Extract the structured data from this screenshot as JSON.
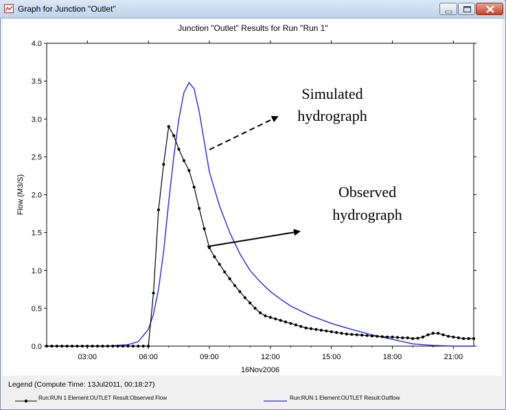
{
  "window": {
    "title": "Graph for Junction \"Outlet\"",
    "controls": [
      "minimize",
      "maximize",
      "close"
    ]
  },
  "chart_data": {
    "type": "line",
    "title": "Junction \"Outlet\" Results for Run \"Run 1\"",
    "ylabel": "Flow (M3/S)",
    "xlabel": "16Nov2006",
    "x_unit": "hours",
    "xlim": [
      1.0,
      22.0
    ],
    "ylim": [
      0.0,
      4.0
    ],
    "x_ticks": [
      3,
      6,
      9,
      12,
      15,
      18,
      21
    ],
    "x_tick_labels": [
      "03:00",
      "06:00",
      "09:00",
      "12:00",
      "15:00",
      "18:00",
      "21:00"
    ],
    "y_ticks": [
      0.0,
      0.5,
      1.0,
      1.5,
      2.0,
      2.5,
      3.0,
      3.5,
      4.0
    ],
    "y_tick_labels": [
      "0.0",
      "0.5",
      "1.0",
      "1.5",
      "2.0",
      "2.5",
      "3.0",
      "3.5",
      "4.0"
    ],
    "grid": false,
    "series": [
      {
        "name": "Run:RUN 1 Element:OUTLET Result:Observed Flow",
        "color": "#000000",
        "markers": true,
        "x": [
          1.0,
          1.25,
          1.5,
          1.75,
          2.0,
          2.25,
          2.5,
          2.75,
          3.0,
          3.25,
          3.5,
          3.75,
          4.0,
          4.25,
          4.5,
          4.75,
          5.0,
          5.25,
          5.5,
          5.75,
          6.0,
          6.25,
          6.5,
          6.75,
          7.0,
          7.25,
          7.5,
          7.75,
          8.0,
          8.25,
          8.5,
          8.75,
          9.0,
          9.25,
          9.5,
          9.75,
          10.0,
          10.25,
          10.5,
          10.75,
          11.0,
          11.25,
          11.5,
          11.75,
          12.0,
          12.25,
          12.5,
          12.75,
          13.0,
          13.25,
          13.5,
          13.75,
          14.0,
          14.25,
          14.5,
          14.75,
          15.0,
          15.25,
          15.5,
          15.75,
          16.0,
          16.25,
          16.5,
          16.75,
          17.0,
          17.25,
          17.5,
          17.75,
          18.0,
          18.25,
          18.5,
          18.75,
          19.0,
          19.25,
          19.5,
          19.75,
          20.0,
          20.25,
          20.5,
          20.75,
          21.0,
          21.25,
          21.5,
          21.75,
          22.0
        ],
        "y": [
          0,
          0,
          0,
          0,
          0,
          0,
          0,
          0,
          0,
          0,
          0,
          0,
          0,
          0,
          0,
          0,
          0,
          0,
          0,
          0,
          0,
          0.7,
          1.8,
          2.4,
          2.9,
          2.78,
          2.6,
          2.45,
          2.32,
          2.1,
          1.82,
          1.55,
          1.3,
          1.18,
          1.08,
          0.98,
          0.89,
          0.8,
          0.72,
          0.64,
          0.57,
          0.5,
          0.44,
          0.4,
          0.38,
          0.36,
          0.34,
          0.32,
          0.3,
          0.28,
          0.26,
          0.24,
          0.23,
          0.22,
          0.21,
          0.2,
          0.19,
          0.18,
          0.17,
          0.16,
          0.155,
          0.15,
          0.145,
          0.14,
          0.135,
          0.13,
          0.125,
          0.12,
          0.12,
          0.115,
          0.11,
          0.11,
          0.1,
          0.105,
          0.12,
          0.15,
          0.17,
          0.17,
          0.15,
          0.13,
          0.12,
          0.11,
          0.1,
          0.1,
          0.1
        ]
      },
      {
        "name": "Run:RUN 1 Element:OUTLET Result:Outflow",
        "color": "#2525e0",
        "markers": false,
        "x": [
          1.0,
          4.0,
          5.0,
          5.5,
          6.0,
          6.25,
          6.5,
          6.75,
          7.0,
          7.25,
          7.5,
          7.75,
          8.0,
          8.25,
          8.5,
          8.75,
          9.0,
          9.5,
          10.0,
          10.5,
          11.0,
          11.5,
          12.0,
          12.5,
          13.0,
          14.0,
          15.0,
          16.0,
          17.0,
          17.5,
          18.0,
          18.5,
          19.0,
          20.0,
          21.0,
          22.0
        ],
        "y": [
          0,
          0,
          0.02,
          0.06,
          0.22,
          0.42,
          0.75,
          1.25,
          1.9,
          2.5,
          3.0,
          3.35,
          3.48,
          3.4,
          3.1,
          2.7,
          2.3,
          1.85,
          1.5,
          1.22,
          1.0,
          0.85,
          0.72,
          0.62,
          0.53,
          0.4,
          0.3,
          0.22,
          0.15,
          0.12,
          0.09,
          0.06,
          0.03,
          0.01,
          0,
          0
        ]
      }
    ],
    "annotations": [
      {
        "text_lines": [
          "Simulated",
          "hydrograph"
        ],
        "arrow": "dashed"
      },
      {
        "text_lines": [
          "Observed",
          "hydrograph"
        ],
        "arrow": "solid"
      }
    ]
  },
  "legend": {
    "title": "Legend (Compute Time: 13Jul2011, 00:18:27)",
    "items": [
      {
        "label": "Run:RUN 1 Element:OUTLET Result:Observed Flow",
        "color": "#000000",
        "marker": true
      },
      {
        "label": "Run:RUN 1 Element:OUTLET Result:Outflow",
        "color": "#2525e0",
        "marker": false
      }
    ]
  }
}
